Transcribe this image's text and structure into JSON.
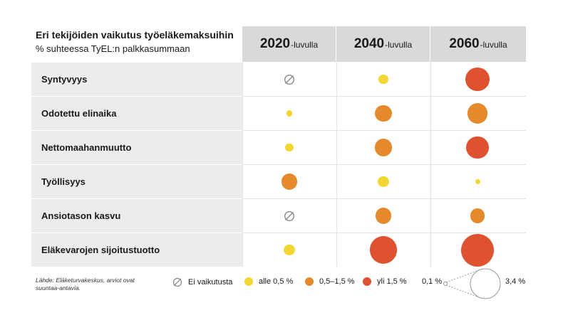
{
  "title": "Eri tekijöiden vaikutus työeläkemaksuihin",
  "subtitle": "% suhteessa TyEL:n palkkasummaan",
  "columns": [
    {
      "year": "2020",
      "suffix": "-luvulla"
    },
    {
      "year": "2040",
      "suffix": "-luvulla"
    },
    {
      "year": "2060",
      "suffix": "-luvulla"
    }
  ],
  "rows": [
    "Syntyvyys",
    "Odotettu elinaika",
    "Nettomaahanmuutto",
    "Työllisyys",
    "Ansiotason kasvu",
    "Eläkevarojen sijoitustuotto"
  ],
  "source": "Lähde: Eläketurvakeskus, arviot ovat suuntaa-antavia.",
  "legend": {
    "none": "Ei vaikutusta",
    "low": "alle 0,5 %",
    "mid": "0,5–1,5 %",
    "high": "yli 1,5 %",
    "size_min": "0,1 %",
    "size_max": "3,4 %"
  },
  "colors": {
    "low": "#f2d734",
    "mid": "#e48a2c",
    "high": "#df5230",
    "none_icon": "#8a8a8a"
  },
  "chart_data": {
    "type": "bubble-table",
    "title": "Eri tekijöiden vaikutus työeläkemaksuihin",
    "subtitle": "% suhteessa TyEL:n palkkasummaan",
    "categories": [
      "2020-luvulla",
      "2040-luvulla",
      "2060-luvulla"
    ],
    "size_range": [
      0.1,
      3.4
    ],
    "classes": {
      "none": "Ei vaikutusta",
      "low": "alle 0,5 %",
      "mid": "0,5–1,5 %",
      "high": "yli 1,5 %"
    },
    "series": [
      {
        "name": "Syntyvyys",
        "values": [
          {
            "value": 0,
            "class": "none"
          },
          {
            "value": 0.3,
            "class": "low"
          },
          {
            "value": 1.8,
            "class": "high"
          }
        ]
      },
      {
        "name": "Odotettu elinaika",
        "values": [
          {
            "value": 0.15,
            "class": "low"
          },
          {
            "value": 0.9,
            "class": "mid"
          },
          {
            "value": 1.3,
            "class": "mid"
          }
        ]
      },
      {
        "name": "Nettomaahanmuutto",
        "values": [
          {
            "value": 0.25,
            "class": "low"
          },
          {
            "value": 1.0,
            "class": "mid"
          },
          {
            "value": 1.6,
            "class": "high"
          }
        ]
      },
      {
        "name": "Työllisyys",
        "values": [
          {
            "value": 0.8,
            "class": "mid"
          },
          {
            "value": 0.4,
            "class": "low"
          },
          {
            "value": 0.1,
            "class": "low"
          }
        ]
      },
      {
        "name": "Ansiotason kasvu",
        "values": [
          {
            "value": 0,
            "class": "none"
          },
          {
            "value": 0.8,
            "class": "mid"
          },
          {
            "value": 0.7,
            "class": "mid"
          }
        ]
      },
      {
        "name": "Eläkevarojen sijoitustuotto",
        "values": [
          {
            "value": 0.4,
            "class": "low"
          },
          {
            "value": 2.4,
            "class": "high"
          },
          {
            "value": 3.4,
            "class": "high"
          }
        ]
      }
    ]
  }
}
